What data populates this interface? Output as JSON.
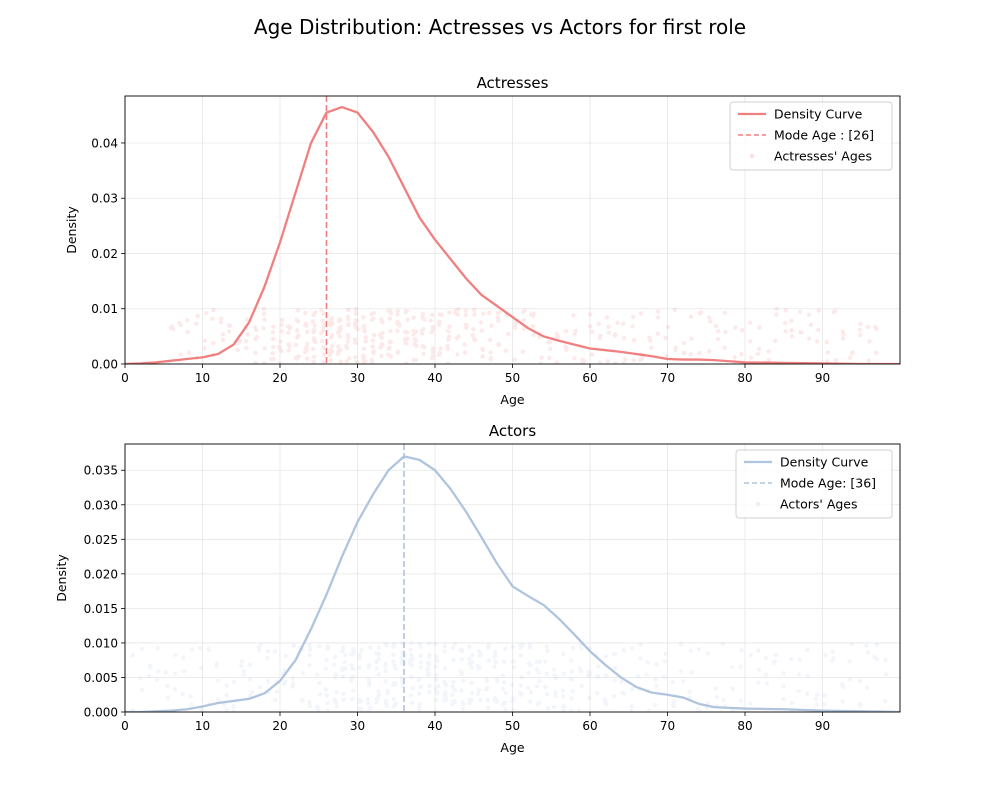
{
  "figure_title": "Age Distribution: Actresses vs Actors for first role",
  "chart_data": [
    {
      "type": "area",
      "title": "Actresses",
      "xlabel": "Age",
      "ylabel": "Density",
      "xlim": [
        0,
        100
      ],
      "ylim": [
        0,
        0.0485
      ],
      "xticks": [
        0,
        10,
        20,
        30,
        40,
        50,
        60,
        70,
        80,
        90
      ],
      "xtick_labels": [
        "0",
        "10",
        "20",
        "30",
        "40",
        "50",
        "60",
        "70",
        "80",
        "90"
      ],
      "yticks": [
        0,
        0.01,
        0.02,
        0.03,
        0.04
      ],
      "ytick_labels": [
        "0.00",
        "0.01",
        "0.02",
        "0.03",
        "0.04"
      ],
      "grid": true,
      "color": "#f08080",
      "legend_position": "top-right",
      "series": [
        {
          "name": "Density Curve",
          "kind": "line",
          "x": [
            0,
            2,
            4,
            6,
            8,
            10,
            12,
            14,
            16,
            18,
            20,
            22,
            24,
            26,
            28,
            30,
            32,
            34,
            36,
            38,
            40,
            42,
            44,
            46,
            48,
            50,
            52,
            54,
            56,
            58,
            60,
            62,
            64,
            66,
            68,
            70,
            72,
            74,
            76,
            78,
            80,
            85,
            90,
            95,
            100
          ],
          "y": [
            0.0,
            0.0001,
            0.0003,
            0.0006,
            0.0009,
            0.0012,
            0.0018,
            0.0035,
            0.0075,
            0.014,
            0.022,
            0.031,
            0.04,
            0.0455,
            0.0465,
            0.0455,
            0.042,
            0.0375,
            0.032,
            0.0265,
            0.0225,
            0.019,
            0.0155,
            0.0125,
            0.0105,
            0.0085,
            0.0065,
            0.005,
            0.0042,
            0.0035,
            0.0028,
            0.0025,
            0.0022,
            0.0018,
            0.0014,
            0.0009,
            0.0008,
            0.0008,
            0.0007,
            0.0005,
            0.0003,
            0.0002,
            0.0001,
            0.0,
            0.0
          ]
        },
        {
          "name": "Mode Age : [26]",
          "kind": "vline",
          "x": 26
        },
        {
          "name": "Actresses' Ages",
          "kind": "scatter",
          "y_range": [
            0,
            0.01
          ],
          "x_range": [
            6,
            97
          ],
          "n_columns": 85,
          "points_per_column": 9
        }
      ]
    },
    {
      "type": "area",
      "title": "Actors",
      "xlabel": "Age",
      "ylabel": "Density",
      "xlim": [
        0,
        100
      ],
      "ylim": [
        0,
        0.0388
      ],
      "xticks": [
        0,
        10,
        20,
        30,
        40,
        50,
        60,
        70,
        80,
        90
      ],
      "xtick_labels": [
        "0",
        "10",
        "20",
        "30",
        "40",
        "50",
        "60",
        "70",
        "80",
        "90"
      ],
      "yticks": [
        0,
        0.005,
        0.01,
        0.015,
        0.02,
        0.025,
        0.03,
        0.035
      ],
      "ytick_labels": [
        "0.000",
        "0.005",
        "0.010",
        "0.015",
        "0.020",
        "0.025",
        "0.030",
        "0.035"
      ],
      "grid": true,
      "color": "#b0c4de",
      "legend_position": "top-right",
      "series": [
        {
          "name": "Density Curve",
          "kind": "line",
          "x": [
            0,
            2,
            4,
            6,
            8,
            10,
            12,
            14,
            16,
            18,
            20,
            22,
            24,
            26,
            28,
            30,
            32,
            34,
            36,
            38,
            40,
            42,
            44,
            46,
            48,
            50,
            52,
            54,
            56,
            58,
            60,
            62,
            64,
            66,
            68,
            70,
            72,
            74,
            76,
            78,
            80,
            85,
            90,
            95,
            100
          ],
          "y": [
            0.0,
            0.0,
            0.0001,
            0.0002,
            0.0004,
            0.0008,
            0.0013,
            0.0016,
            0.0019,
            0.0027,
            0.0045,
            0.0075,
            0.012,
            0.017,
            0.0225,
            0.0275,
            0.0315,
            0.035,
            0.037,
            0.0365,
            0.035,
            0.0323,
            0.029,
            0.0253,
            0.0215,
            0.0182,
            0.0168,
            0.0155,
            0.0135,
            0.0112,
            0.0088,
            0.0068,
            0.005,
            0.0036,
            0.0028,
            0.0025,
            0.0021,
            0.0012,
            0.0007,
            0.0006,
            0.0005,
            0.0004,
            0.0002,
            0.0001,
            0.0
          ]
        },
        {
          "name": "Mode Age: [36]",
          "kind": "vline",
          "x": 36
        },
        {
          "name": "Actors' Ages",
          "kind": "scatter",
          "y_range": [
            0,
            0.01
          ],
          "x_range": [
            1,
            98
          ],
          "n_columns": 90,
          "points_per_column": 9
        }
      ]
    }
  ]
}
